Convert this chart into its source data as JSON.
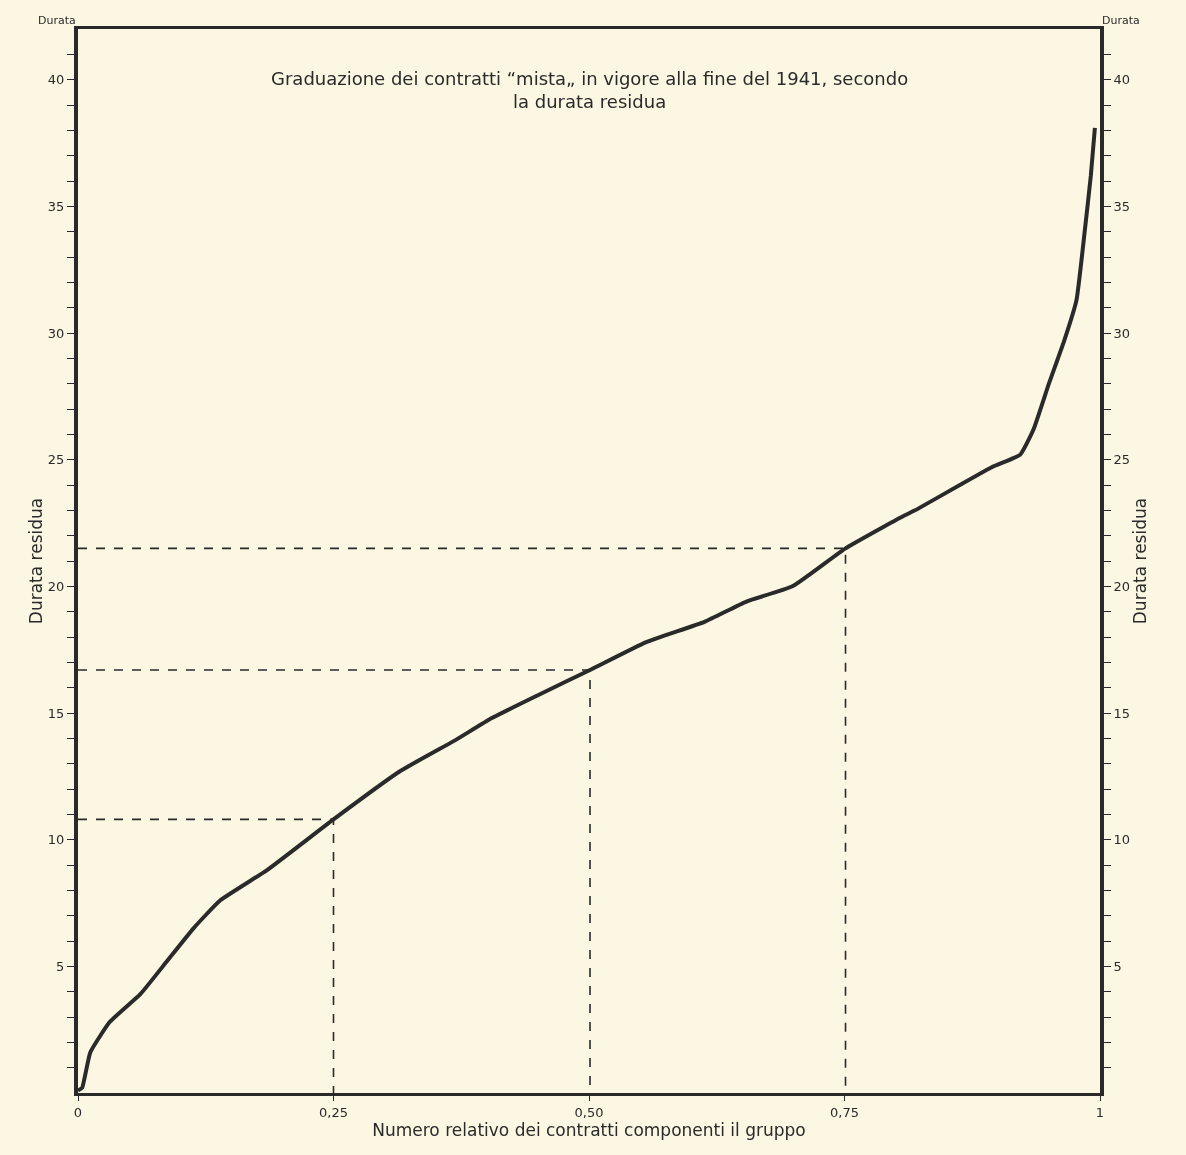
{
  "chart_data": {
    "type": "line",
    "title": "Graduazione dei contratti “mista„ in vigore alla fine del 1941, secondo la durata residua",
    "xlabel": "Numero relativo dei contratti componenti il gruppo",
    "ylabel": "Durata residua",
    "y2label": "Durata residua",
    "annotations": [
      "Durata",
      "Durata"
    ],
    "series": [
      {
        "color": "#2a2a2a",
        "line_style": "solid",
        "x": [
          0,
          0.004,
          0.012,
          0.031,
          0.061,
          0.087,
          0.113,
          0.139,
          0.185,
          0.25,
          0.315,
          0.368,
          0.405,
          0.45,
          0.501,
          0.556,
          0.613,
          0.654,
          0.699,
          0.751,
          0.804,
          0.819,
          0.894,
          0.922,
          0.935,
          0.95,
          0.965,
          0.977,
          0.985,
          0.991,
          0.995
        ],
        "values": [
          0.1,
          0.2,
          1.6,
          2.8,
          3.9,
          5.2,
          6.5,
          7.6,
          8.8,
          10.8,
          12.7,
          13.9,
          14.8,
          15.7,
          16.7,
          17.8,
          18.6,
          19.4,
          20.0,
          21.5,
          22.7,
          23.0,
          24.7,
          25.2,
          26.2,
          28.0,
          29.7,
          31.3,
          34.0,
          36.2,
          38.1
        ]
      },
      {
        "color": "#2a2a2a",
        "line_style": "dashed",
        "x": [
          0,
          0.25,
          0.25
        ],
        "values": [
          10.8,
          10.8,
          0
        ]
      },
      {
        "color": "#2a2a2a",
        "line_style": "dashed",
        "x": [
          0,
          0.501,
          0.501
        ],
        "values": [
          16.7,
          16.7,
          0
        ]
      },
      {
        "color": "#2a2a2a",
        "line_style": "dashed",
        "axis": "y2",
        "x": [
          0,
          0.751,
          0.751
        ],
        "values": [
          21.5,
          21.5,
          0
        ]
      }
    ],
    "xlim": [
      0,
      1
    ],
    "xticks": [
      0,
      {
        "value": 0.25,
        "label": "0,25"
      },
      {
        "value": 0.5,
        "label": "0,50"
      },
      {
        "value": 0.75,
        "label": "0,75"
      },
      1
    ],
    "ylim": [
      0,
      42
    ],
    "yticks": [
      {
        "value": 1,
        "label": null
      },
      {
        "value": 2,
        "label": null
      },
      {
        "value": 3,
        "label": null
      },
      {
        "value": 4,
        "label": null
      },
      5,
      {
        "value": 6,
        "label": null
      },
      {
        "value": 7,
        "label": null
      },
      {
        "value": 8,
        "label": null
      },
      {
        "value": 9,
        "label": null
      },
      10,
      {
        "value": 11,
        "label": null
      },
      {
        "value": 12,
        "label": null
      },
      {
        "value": 13,
        "label": null
      },
      {
        "value": 14,
        "label": null
      },
      15,
      {
        "value": 16,
        "label": null
      },
      {
        "value": 17,
        "label": null
      },
      {
        "value": 18,
        "label": null
      },
      {
        "value": 19,
        "label": null
      },
      20,
      {
        "value": 21,
        "label": null
      },
      {
        "value": 22,
        "label": null
      },
      {
        "value": 23,
        "label": null
      },
      {
        "value": 24,
        "label": null
      },
      25,
      {
        "value": 26,
        "label": null
      },
      {
        "value": 27,
        "label": null
      },
      {
        "value": 28,
        "label": null
      },
      {
        "value": 29,
        "label": null
      },
      30,
      {
        "value": 31,
        "label": null
      },
      {
        "value": 32,
        "label": null
      },
      {
        "value": 33,
        "label": null
      },
      {
        "value": 34,
        "label": null
      },
      35,
      {
        "value": 36,
        "label": null
      },
      {
        "value": 37,
        "label": null
      },
      {
        "value": 38,
        "label": null
      },
      {
        "value": 39,
        "label": null
      },
      40,
      {
        "value": 41,
        "label": null
      }
    ],
    "y2lim": [
      0,
      42
    ],
    "y2ticks": [
      {
        "value": 1,
        "label": null
      },
      {
        "value": 2,
        "label": null
      },
      {
        "value": 3,
        "label": null
      },
      {
        "value": 4,
        "label": null
      },
      5,
      {
        "value": 6,
        "label": null
      },
      {
        "value": 7,
        "label": null
      },
      {
        "value": 8,
        "label": null
      },
      {
        "value": 9,
        "label": null
      },
      10,
      {
        "value": 11,
        "label": null
      },
      {
        "value": 12,
        "label": null
      },
      {
        "value": 13,
        "label": null
      },
      {
        "value": 14,
        "label": null
      },
      15,
      {
        "value": 16,
        "label": null
      },
      {
        "value": 17,
        "label": null
      },
      {
        "value": 18,
        "label": null
      },
      {
        "value": 19,
        "label": null
      },
      20,
      {
        "value": 21,
        "label": null
      },
      {
        "value": 22,
        "label": null
      },
      {
        "value": 23,
        "label": null
      },
      {
        "value": 24,
        "label": null
      },
      25,
      {
        "value": 26,
        "label": null
      },
      {
        "value": 27,
        "label": null
      },
      {
        "value": 28,
        "label": null
      },
      {
        "value": 29,
        "label": null
      },
      30,
      {
        "value": 31,
        "label": null
      },
      {
        "value": 32,
        "label": null
      },
      {
        "value": 33,
        "label": null
      },
      {
        "value": 34,
        "label": null
      },
      35,
      {
        "value": 36,
        "label": null
      },
      {
        "value": 37,
        "label": null
      },
      {
        "value": 38,
        "label": null
      },
      {
        "value": 39,
        "label": null
      },
      40,
      {
        "value": 41,
        "label": null
      }
    ],
    "grid": false,
    "marker": "none"
  }
}
